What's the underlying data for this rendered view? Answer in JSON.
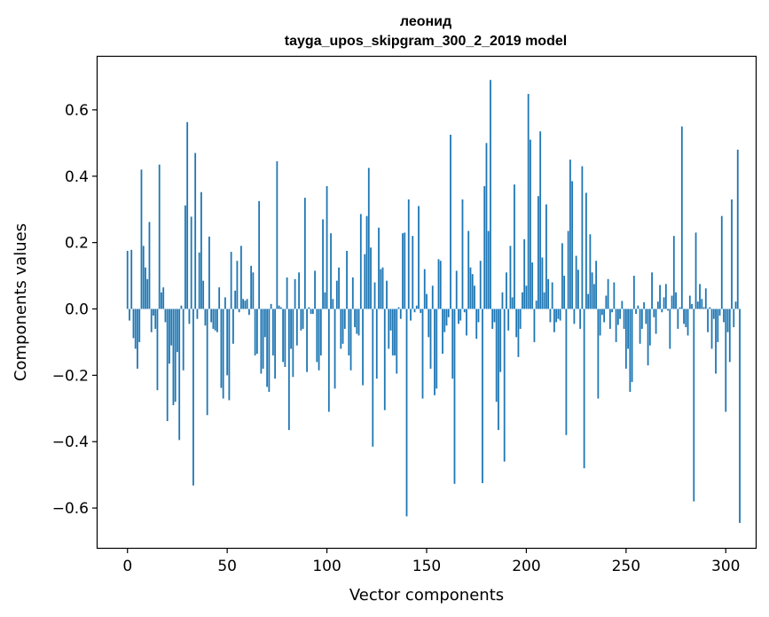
{
  "chart_data": {
    "type": "bar",
    "title_line1": "леонид",
    "title_line2": "tayga_upos_skipgram_300_2_2019 model",
    "xlabel": "Vector components",
    "ylabel": "Components values",
    "xlim": [
      -15,
      315
    ],
    "ylim": [
      -0.72,
      0.76
    ],
    "xticks": [
      0,
      50,
      100,
      150,
      200,
      250,
      300
    ],
    "xtick_labels": [
      "0",
      "50",
      "100",
      "150",
      "200",
      "250",
      "300"
    ],
    "yticks": [
      -0.6,
      -0.4,
      -0.2,
      0.0,
      0.2,
      0.4,
      0.6
    ],
    "ytick_labels": [
      "−0.6",
      "−0.4",
      "−0.2",
      "0.0",
      "0.2",
      "0.4",
      "0.6"
    ],
    "bar_color": "#1f77b4",
    "values": [
      0.175,
      -0.035,
      0.178,
      -0.088,
      -0.12,
      -0.18,
      -0.1,
      0.42,
      0.19,
      0.125,
      0.09,
      0.262,
      -0.07,
      -0.02,
      -0.06,
      -0.245,
      0.435,
      0.05,
      0.065,
      -0.04,
      -0.338,
      -0.165,
      -0.11,
      -0.29,
      -0.28,
      -0.13,
      -0.395,
      0.01,
      -0.185,
      0.312,
      0.563,
      -0.045,
      0.278,
      -0.532,
      0.47,
      -0.03,
      0.17,
      0.352,
      0.085,
      -0.05,
      -0.32,
      0.218,
      -0.04,
      -0.06,
      -0.065,
      -0.07,
      0.065,
      -0.238,
      -0.27,
      0.035,
      -0.2,
      -0.275,
      0.172,
      -0.105,
      0.055,
      0.145,
      -0.01,
      0.19,
      0.03,
      0.025,
      0.03,
      -0.018,
      0.13,
      0.11,
      -0.14,
      -0.135,
      0.325,
      -0.195,
      -0.18,
      -0.085,
      -0.235,
      -0.25,
      0.015,
      -0.14,
      -0.21,
      0.445,
      0.01,
      0.005,
      -0.16,
      -0.175,
      0.095,
      -0.365,
      -0.12,
      -0.205,
      0.09,
      -0.11,
      0.11,
      -0.065,
      -0.06,
      0.335,
      -0.19,
      0.005,
      -0.015,
      -0.015,
      0.115,
      -0.16,
      -0.185,
      -0.14,
      0.27,
      0.05,
      0.37,
      -0.31,
      0.228,
      0.03,
      -0.24,
      0.085,
      0.125,
      -0.12,
      -0.105,
      -0.06,
      0.175,
      -0.14,
      -0.185,
      0.095,
      -0.055,
      -0.075,
      -0.08,
      0.286,
      -0.23,
      0.165,
      0.28,
      0.425,
      0.185,
      -0.415,
      0.08,
      -0.21,
      0.245,
      0.12,
      0.125,
      -0.305,
      0.085,
      -0.12,
      -0.065,
      -0.14,
      -0.14,
      -0.195,
      0.005,
      -0.03,
      0.228,
      0.23,
      -0.625,
      0.33,
      -0.035,
      0.22,
      -0.01,
      0.01,
      0.31,
      -0.012,
      -0.27,
      0.12,
      0.045,
      -0.085,
      -0.18,
      0.07,
      -0.26,
      -0.24,
      0.15,
      0.145,
      -0.135,
      -0.07,
      -0.05,
      -0.025,
      0.525,
      -0.21,
      -0.527,
      0.115,
      -0.045,
      -0.035,
      0.33,
      -0.01,
      -0.08,
      0.235,
      0.125,
      0.105,
      0.07,
      -0.09,
      -0.04,
      0.145,
      -0.525,
      0.37,
      0.5,
      0.235,
      0.69,
      -0.06,
      -0.04,
      -0.28,
      -0.365,
      -0.19,
      0.05,
      -0.46,
      0.11,
      -0.065,
      0.19,
      0.035,
      0.375,
      -0.085,
      -0.145,
      -0.06,
      0.05,
      0.21,
      0.07,
      0.648,
      0.51,
      0.14,
      -0.1,
      0.025,
      0.34,
      0.535,
      0.155,
      0.05,
      0.315,
      0.09,
      -0.04,
      0.08,
      -0.07,
      -0.04,
      -0.03,
      -0.035,
      0.198,
      0.1,
      -0.38,
      0.235,
      0.45,
      0.385,
      -0.045,
      0.16,
      0.118,
      -0.06,
      0.43,
      -0.48,
      0.35,
      0.045,
      0.225,
      0.11,
      0.075,
      0.145,
      -0.27,
      -0.08,
      -0.018,
      -0.04,
      0.04,
      0.09,
      -0.06,
      -0.01,
      0.08,
      -0.1,
      -0.048,
      -0.03,
      0.024,
      -0.06,
      -0.18,
      -0.12,
      -0.25,
      -0.22,
      0.1,
      -0.015,
      0.01,
      -0.105,
      -0.06,
      0.02,
      -0.045,
      -0.17,
      -0.11,
      0.11,
      -0.025,
      -0.075,
      0.022,
      0.072,
      -0.01,
      0.035,
      0.075,
      -0.005,
      -0.12,
      0.04,
      0.22,
      0.05,
      -0.06,
      0.005,
      0.55,
      -0.045,
      -0.055,
      -0.08,
      0.04,
      0.015,
      -0.58,
      0.23,
      0.022,
      0.075,
      0.03,
      0.005,
      0.062,
      -0.07,
      0.005,
      -0.12,
      -0.03,
      -0.195,
      -0.1,
      -0.02,
      0.28,
      -0.04,
      -0.31,
      -0.07,
      -0.16,
      0.33,
      -0.055,
      0.022,
      0.48,
      -0.645
    ]
  }
}
